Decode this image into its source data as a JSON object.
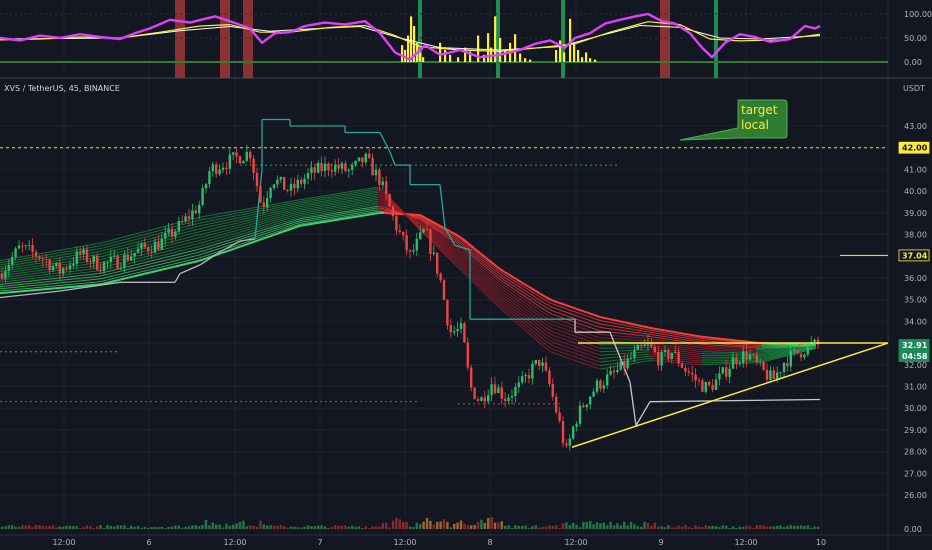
{
  "chart_data": {
    "type": "candlestick",
    "symbol_label": "XVS / TetherUS, 45, BINANCE",
    "currency": "USDT",
    "price_axis_ticks": [
      "43.00",
      "42.00",
      "41.00",
      "40.00",
      "39.00",
      "38.00",
      "37.00",
      "36.00",
      "35.00",
      "34.00",
      "33.00",
      "32.00",
      "31.00",
      "30.00",
      "29.00",
      "28.00",
      "27.00",
      "26.00"
    ],
    "oscillator_axis_ticks": [
      "100.00",
      "50.00",
      "0.00"
    ],
    "volume_axis_tick": "0.00",
    "time_axis_labels": [
      "12:00",
      "6",
      "12:00",
      "7",
      "12:00",
      "8",
      "12:00",
      "9",
      "12:00",
      "10"
    ],
    "ylim": [
      25.3,
      44.3
    ],
    "price_tags": [
      {
        "value": "42.00",
        "bg": "#ffeb3b",
        "fg": "#131722",
        "price": 42.0
      },
      {
        "value": "37.04",
        "bg": "#131722",
        "fg": "#ffeb3b",
        "price": 37.04
      },
      {
        "value": "32.91",
        "bg": "#1e8a57",
        "fg": "#ffffff",
        "price": 32.91
      },
      {
        "value": "04:58",
        "bg": "#1e8a57",
        "fg": "#ffffff",
        "price": 32.4
      }
    ],
    "annotation": {
      "line1": "target",
      "line2": "local"
    },
    "price_path": [
      [
        0,
        36.2
      ],
      [
        20,
        37.4
      ],
      [
        40,
        37.0
      ],
      [
        60,
        36.3
      ],
      [
        80,
        37.1
      ],
      [
        100,
        36.6
      ],
      [
        120,
        36.8
      ],
      [
        140,
        37.3
      ],
      [
        160,
        37.6
      ],
      [
        180,
        38.4
      ],
      [
        200,
        39.4
      ],
      [
        210,
        41.0
      ],
      [
        220,
        41.2
      ],
      [
        235,
        41.5
      ],
      [
        250,
        41.8
      ],
      [
        262,
        39.2
      ],
      [
        272,
        40.6
      ],
      [
        290,
        40.0
      ],
      [
        310,
        40.8
      ],
      [
        330,
        41.2
      ],
      [
        350,
        40.9
      ],
      [
        365,
        41.5
      ],
      [
        380,
        40.5
      ],
      [
        395,
        38.5
      ],
      [
        410,
        37.0
      ],
      [
        425,
        38.2
      ],
      [
        440,
        36.0
      ],
      [
        450,
        33.5
      ],
      [
        462,
        33.6
      ],
      [
        470,
        31.0
      ],
      [
        480,
        30.3
      ],
      [
        492,
        31.2
      ],
      [
        505,
        30.5
      ],
      [
        520,
        31.0
      ],
      [
        532,
        31.8
      ],
      [
        540,
        32.2
      ],
      [
        550,
        31.0
      ],
      [
        560,
        29.2
      ],
      [
        566,
        27.9
      ],
      [
        575,
        29.4
      ],
      [
        585,
        30.3
      ],
      [
        598,
        31.1
      ],
      [
        612,
        31.5
      ],
      [
        625,
        32.0
      ],
      [
        635,
        32.5
      ],
      [
        648,
        32.9
      ],
      [
        660,
        32.2
      ],
      [
        672,
        32.6
      ],
      [
        685,
        31.8
      ],
      [
        698,
        31.2
      ],
      [
        708,
        30.9
      ],
      [
        720,
        31.4
      ],
      [
        735,
        32.3
      ],
      [
        748,
        32.5
      ],
      [
        760,
        31.8
      ],
      [
        773,
        31.3
      ],
      [
        785,
        32.2
      ],
      [
        800,
        32.6
      ],
      [
        810,
        32.9
      ],
      [
        820,
        32.9
      ]
    ],
    "ribbon": {
      "a": [
        [
          0,
          35.3
        ],
        [
          100,
          35.7
        ],
        [
          200,
          36.8
        ],
        [
          300,
          38.4
        ],
        [
          380,
          39.0
        ],
        [
          420,
          38.9
        ],
        [
          460,
          37.9
        ],
        [
          500,
          36.4
        ],
        [
          550,
          35.0
        ],
        [
          600,
          34.2
        ],
        [
          650,
          33.7
        ],
        [
          700,
          33.3
        ],
        [
          760,
          33.0
        ],
        [
          820,
          32.9
        ]
      ],
      "b": [
        [
          0,
          36.8
        ],
        [
          100,
          37.6
        ],
        [
          200,
          38.8
        ],
        [
          300,
          39.6
        ],
        [
          380,
          40.2
        ],
        [
          420,
          38.2
        ],
        [
          460,
          36.4
        ],
        [
          500,
          34.6
        ],
        [
          550,
          32.6
        ],
        [
          600,
          31.8
        ],
        [
          650,
          32.2
        ],
        [
          700,
          32.0
        ],
        [
          760,
          32.1
        ],
        [
          820,
          32.8
        ]
      ]
    },
    "baseline_line": [
      [
        0,
        35.1
      ],
      [
        60,
        35.4
      ],
      [
        120,
        35.8
      ],
      [
        175,
        35.8
      ],
      [
        180,
        36.2
      ],
      [
        200,
        36.6
      ],
      [
        220,
        37.2
      ],
      [
        240,
        37.7
      ],
      [
        255,
        37.8
      ],
      [
        262,
        41.0
      ],
      [
        262,
        43.3
      ],
      [
        290,
        43.3
      ],
      [
        290,
        43.0
      ],
      [
        345,
        43.0
      ],
      [
        345,
        42.7
      ],
      [
        380,
        42.7
      ],
      [
        390,
        41.8
      ],
      [
        395,
        41.2
      ],
      [
        410,
        41.2
      ],
      [
        410,
        40.3
      ],
      [
        440,
        40.3
      ],
      [
        445,
        38.3
      ],
      [
        455,
        37.5
      ],
      [
        470,
        37.3
      ],
      [
        470,
        34.1
      ],
      [
        575,
        34.1
      ],
      [
        575,
        33.5
      ],
      [
        610,
        33.5
      ],
      [
        630,
        31.2
      ],
      [
        636,
        29.2
      ],
      [
        650,
        30.3
      ],
      [
        820,
        30.4
      ]
    ],
    "triangle": {
      "top_x": [
        578,
        888
      ],
      "top_price": 33.0,
      "bottom_from": [
        572,
        28.2
      ],
      "bottom_to": [
        888,
        33.0
      ]
    },
    "levels": [
      {
        "price": 42.0,
        "color": "#f5d033",
        "dash": "3,3",
        "from": 0,
        "to": 888
      },
      {
        "price": 41.2,
        "color": "#26a65b",
        "dash": "2,3",
        "from": 240,
        "to": 618
      },
      {
        "price": 37.04,
        "color": "#ffeb3b",
        "dash": "",
        "from": 840,
        "to": 888
      },
      {
        "price": 32.6,
        "color": "#26a65b",
        "dash": "2,3",
        "from": 0,
        "to": 118
      },
      {
        "price": 30.3,
        "color": "#d23f3f",
        "dash": "2,3",
        "from": 0,
        "to": 418
      },
      {
        "price": 30.2,
        "color": "#d23f3f",
        "dash": "2,3",
        "from": 458,
        "to": 562
      }
    ],
    "oscillator": {
      "fast": [
        [
          0,
          50
        ],
        [
          20,
          45
        ],
        [
          40,
          55
        ],
        [
          60,
          50
        ],
        [
          80,
          58
        ],
        [
          100,
          52
        ],
        [
          120,
          48
        ],
        [
          135,
          60
        ],
        [
          150,
          70
        ],
        [
          170,
          88
        ],
        [
          190,
          82
        ],
        [
          205,
          90
        ],
        [
          215,
          95
        ],
        [
          230,
          85
        ],
        [
          250,
          70
        ],
        [
          262,
          40
        ],
        [
          275,
          60
        ],
        [
          290,
          62
        ],
        [
          305,
          75
        ],
        [
          325,
          82
        ],
        [
          345,
          78
        ],
        [
          365,
          85
        ],
        [
          380,
          60
        ],
        [
          395,
          20
        ],
        [
          410,
          5
        ],
        [
          425,
          35
        ],
        [
          440,
          15
        ],
        [
          460,
          25
        ],
        [
          480,
          10
        ],
        [
          500,
          15
        ],
        [
          520,
          25
        ],
        [
          535,
          38
        ],
        [
          550,
          45
        ],
        [
          565,
          30
        ],
        [
          575,
          50
        ],
        [
          590,
          60
        ],
        [
          605,
          80
        ],
        [
          620,
          88
        ],
        [
          635,
          95
        ],
        [
          648,
          100
        ],
        [
          662,
          85
        ],
        [
          675,
          80
        ],
        [
          690,
          60
        ],
        [
          702,
          30
        ],
        [
          712,
          10
        ],
        [
          725,
          40
        ],
        [
          740,
          58
        ],
        [
          755,
          52
        ],
        [
          770,
          42
        ],
        [
          790,
          48
        ],
        [
          805,
          75
        ],
        [
          815,
          70
        ],
        [
          820,
          75
        ]
      ],
      "slow": [
        [
          0,
          46
        ],
        [
          40,
          48
        ],
        [
          80,
          52
        ],
        [
          120,
          50
        ],
        [
          160,
          62
        ],
        [
          200,
          75
        ],
        [
          230,
          78
        ],
        [
          260,
          62
        ],
        [
          290,
          62
        ],
        [
          330,
          72
        ],
        [
          365,
          76
        ],
        [
          395,
          55
        ],
        [
          420,
          32
        ],
        [
          460,
          25
        ],
        [
          500,
          22
        ],
        [
          540,
          30
        ],
        [
          575,
          38
        ],
        [
          610,
          62
        ],
        [
          648,
          84
        ],
        [
          680,
          78
        ],
        [
          710,
          48
        ],
        [
          740,
          44
        ],
        [
          780,
          46
        ],
        [
          820,
          58
        ]
      ],
      "signal": [
        [
          0,
          48
        ],
        [
          60,
          49
        ],
        [
          120,
          50
        ],
        [
          180,
          65
        ],
        [
          230,
          74
        ],
        [
          270,
          64
        ],
        [
          320,
          70
        ],
        [
          360,
          74
        ],
        [
          400,
          50
        ],
        [
          440,
          30
        ],
        [
          500,
          25
        ],
        [
          560,
          32
        ],
        [
          600,
          55
        ],
        [
          640,
          76
        ],
        [
          680,
          72
        ],
        [
          720,
          50
        ],
        [
          760,
          48
        ],
        [
          820,
          55
        ]
      ],
      "yellow_bars": [
        [
          402,
          35
        ],
        [
          405,
          25
        ],
        [
          408,
          55
        ],
        [
          411,
          95
        ],
        [
          414,
          75
        ],
        [
          417,
          40
        ],
        [
          420,
          20
        ],
        [
          423,
          10
        ],
        [
          440,
          40
        ],
        [
          445,
          25
        ],
        [
          450,
          15
        ],
        [
          458,
          10
        ],
        [
          465,
          30
        ],
        [
          470,
          22
        ],
        [
          478,
          55
        ],
        [
          484,
          15
        ],
        [
          488,
          60
        ],
        [
          491,
          30
        ],
        [
          495,
          95
        ],
        [
          500,
          50
        ],
        [
          505,
          25
        ],
        [
          510,
          40
        ],
        [
          515,
          58
        ],
        [
          520,
          18
        ],
        [
          525,
          8
        ],
        [
          530,
          5
        ],
        [
          556,
          25
        ],
        [
          560,
          45
        ],
        [
          564,
          20
        ],
        [
          570,
          90
        ],
        [
          574,
          40
        ],
        [
          578,
          25
        ],
        [
          582,
          10
        ],
        [
          586,
          20
        ],
        [
          590,
          8
        ],
        [
          595,
          5
        ]
      ],
      "red_bars": [
        180,
        225,
        248,
        665
      ],
      "green_bars": [
        420,
        498,
        563,
        716
      ]
    }
  }
}
